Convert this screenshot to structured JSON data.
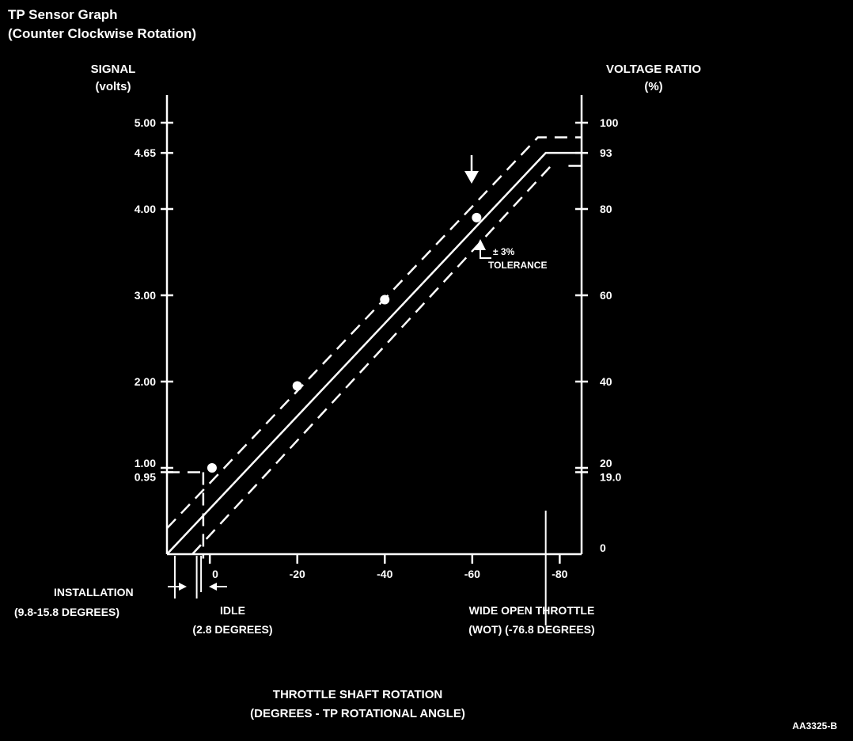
{
  "colors": {
    "background": "#000000",
    "foreground": "#ffffff"
  },
  "chart_data": {
    "type": "line",
    "title": [
      "TP Sensor Graph",
      "(Counter Clockwise Rotation)"
    ],
    "left_axis": {
      "label": [
        "SIGNAL",
        "(volts)"
      ],
      "range": [
        0,
        5.0
      ],
      "ticks": [
        {
          "value": 5.0,
          "label": "5.00"
        },
        {
          "value": 4.65,
          "label": "4.65"
        },
        {
          "value": 4.0,
          "label": "4.00"
        },
        {
          "value": 3.0,
          "label": "3.00"
        },
        {
          "value": 2.0,
          "label": "2.00"
        },
        {
          "value": 1.0,
          "label": "1.00"
        },
        {
          "value": 0.95,
          "label": "0.95"
        }
      ]
    },
    "right_axis": {
      "label": [
        "VOLTAGE RATIO",
        "(%)"
      ],
      "range": [
        0,
        100
      ],
      "ticks": [
        {
          "value": 100,
          "label": "100"
        },
        {
          "value": 93,
          "label": "93"
        },
        {
          "value": 80,
          "label": "80"
        },
        {
          "value": 60,
          "label": "60"
        },
        {
          "value": 40,
          "label": "40"
        },
        {
          "value": 20,
          "label": "20"
        },
        {
          "value": 19.0,
          "label": "19.0"
        },
        {
          "value": 0,
          "label": "0"
        }
      ]
    },
    "x_axis": {
      "label": [
        "THROTTLE SHAFT ROTATION",
        "(DEGREES - TP ROTATIONAL ANGLE)"
      ],
      "range": [
        9.8,
        -85
      ],
      "ticks": [
        {
          "value": 0,
          "label": "0"
        },
        {
          "value": -20,
          "label": "-20"
        },
        {
          "value": -40,
          "label": "-40"
        },
        {
          "value": -60,
          "label": "-60"
        },
        {
          "value": -80,
          "label": "-80"
        }
      ]
    },
    "series": [
      {
        "style": "solid",
        "points": [
          [
            9.8,
            0
          ],
          [
            -76.8,
            4.65
          ],
          [
            -85,
            4.65
          ]
        ],
        "markers": [
          [
            -0.5,
            1.0
          ],
          [
            -20,
            1.95
          ],
          [
            -40,
            2.95
          ],
          [
            -61,
            3.9
          ]
        ]
      },
      {
        "style": "dashed",
        "points": [
          [
            9.8,
            0.3
          ],
          [
            -75,
            4.83
          ],
          [
            -85,
            4.83
          ]
        ]
      },
      {
        "style": "dashed",
        "points": [
          [
            4,
            0
          ],
          [
            -78,
            4.5
          ]
        ]
      },
      {
        "style": "dashed",
        "points": [
          [
            -82,
            4.5
          ],
          [
            -85,
            4.5
          ]
        ]
      }
    ],
    "reference_lines": [
      {
        "style": "dashed",
        "points": [
          [
            9.8,
            0.95
          ],
          [
            1.5,
            0.95
          ]
        ]
      },
      {
        "style": "dashed",
        "points": [
          [
            1.5,
            0.95
          ],
          [
            1.5,
            -0.05
          ]
        ]
      }
    ],
    "markers_below_axis": [
      {
        "x": 3,
        "label": "install-left"
      },
      {
        "x": 8,
        "label": "install-right"
      },
      {
        "x": 2,
        "label": "idle"
      },
      {
        "x": -76.8,
        "label": "wot"
      }
    ],
    "annotations": {
      "tolerance": [
        "± 3%",
        "TOLERANCE"
      ],
      "installation": [
        "INSTALLATION",
        "(9.8-15.8 DEGREES)"
      ],
      "idle": [
        "IDLE",
        "(2.8 DEGREES)"
      ],
      "wot": [
        "WIDE OPEN THROTTLE",
        "(WOT) (-76.8 DEGREES)"
      ],
      "figure_id": "AA3325-B"
    }
  }
}
